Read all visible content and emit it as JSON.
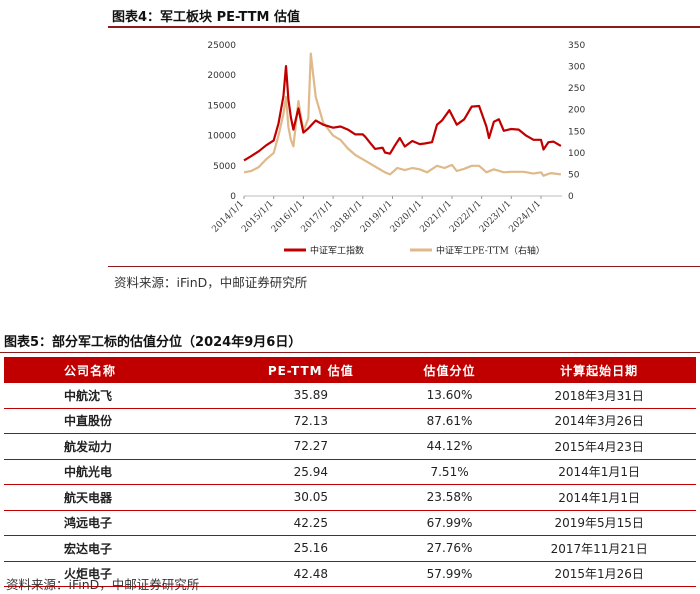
{
  "figure": {
    "title": "图表4：军工板块 PE-TTM 估值",
    "source": "资料来源：iFinD，中邮证券研究所"
  },
  "chart_data": {
    "type": "line",
    "x_ticks": [
      "2014/1/1",
      "2015/1/1",
      "2016/1/1",
      "2017/1/1",
      "2018/1/1",
      "2019/1/1",
      "2020/1/1",
      "2021/1/1",
      "2022/1/1",
      "2023/1/1",
      "2024/1/1"
    ],
    "y_left": {
      "ylim": [
        0,
        25000
      ],
      "ticks": [
        0,
        5000,
        10000,
        15000,
        20000,
        25000
      ]
    },
    "y_right": {
      "ylim": [
        0,
        350
      ],
      "ticks": [
        0,
        50,
        100,
        150,
        200,
        250,
        300,
        350
      ]
    },
    "series": [
      {
        "name": "中证军工指数",
        "axis": "left",
        "color": "#c00000",
        "points": [
          [
            "2014/1/1",
            5900
          ],
          [
            "2014/4/1",
            6600
          ],
          [
            "2014/7/1",
            7400
          ],
          [
            "2014/10/1",
            8400
          ],
          [
            "2015/1/1",
            9200
          ],
          [
            "2015/3/1",
            12000
          ],
          [
            "2015/5/1",
            16500
          ],
          [
            "2015/6/1",
            21500
          ],
          [
            "2015/7/1",
            16000
          ],
          [
            "2015/8/1",
            13000
          ],
          [
            "2015/9/1",
            11000
          ],
          [
            "2015/11/1",
            14500
          ],
          [
            "2016/1/1",
            10500
          ],
          [
            "2016/3/1",
            11200
          ],
          [
            "2016/6/1",
            12500
          ],
          [
            "2016/9/1",
            11800
          ],
          [
            "2017/1/1",
            11300
          ],
          [
            "2017/4/1",
            11500
          ],
          [
            "2017/7/1",
            11000
          ],
          [
            "2017/10/1",
            10200
          ],
          [
            "2018/1/1",
            10200
          ],
          [
            "2018/2/1",
            9800
          ],
          [
            "2018/4/1",
            8800
          ],
          [
            "2018/6/1",
            7800
          ],
          [
            "2018/9/1",
            8000
          ],
          [
            "2018/10/1",
            7200
          ],
          [
            "2018/12/1",
            7000
          ],
          [
            "2019/2/1",
            8400
          ],
          [
            "2019/4/1",
            9600
          ],
          [
            "2019/6/1",
            8200
          ],
          [
            "2019/9/1",
            9100
          ],
          [
            "2019/12/1",
            8600
          ],
          [
            "2020/2/1",
            8700
          ],
          [
            "2020/5/1",
            8900
          ],
          [
            "2020/7/1",
            11800
          ],
          [
            "2020/9/1",
            12500
          ],
          [
            "2020/12/1",
            14200
          ],
          [
            "2021/3/1",
            11800
          ],
          [
            "2021/6/1",
            12700
          ],
          [
            "2021/9/1",
            14800
          ],
          [
            "2021/12/1",
            14900
          ],
          [
            "2022/3/1",
            11500
          ],
          [
            "2022/4/1",
            9600
          ],
          [
            "2022/6/1",
            12300
          ],
          [
            "2022/8/1",
            12700
          ],
          [
            "2022/10/1",
            10800
          ],
          [
            "2023/1/1",
            11100
          ],
          [
            "2023/4/1",
            11000
          ],
          [
            "2023/7/1",
            10000
          ],
          [
            "2023/10/1",
            9300
          ],
          [
            "2024/1/1",
            9300
          ],
          [
            "2024/2/1",
            7700
          ],
          [
            "2024/4/1",
            8900
          ],
          [
            "2024/6/1",
            9000
          ],
          [
            "2024/9/1",
            8300
          ]
        ]
      },
      {
        "name": "中证军工PE-TTM（右轴）",
        "axis": "right",
        "color": "#e0b98a",
        "points": [
          [
            "2014/1/1",
            55
          ],
          [
            "2014/4/1",
            58
          ],
          [
            "2014/7/1",
            67
          ],
          [
            "2014/10/1",
            85
          ],
          [
            "2015/1/1",
            100
          ],
          [
            "2015/3/1",
            140
          ],
          [
            "2015/5/1",
            190
          ],
          [
            "2015/6/1",
            230
          ],
          [
            "2015/7/1",
            160
          ],
          [
            "2015/8/1",
            130
          ],
          [
            "2015/9/1",
            115
          ],
          [
            "2015/11/1",
            220
          ],
          [
            "2016/1/1",
            150
          ],
          [
            "2016/3/1",
            180
          ],
          [
            "2016/4/1",
            330
          ],
          [
            "2016/6/1",
            230
          ],
          [
            "2016/9/1",
            170
          ],
          [
            "2017/1/1",
            140
          ],
          [
            "2017/4/1",
            130
          ],
          [
            "2017/7/1",
            110
          ],
          [
            "2017/10/1",
            95
          ],
          [
            "2018/1/1",
            85
          ],
          [
            "2018/4/1",
            75
          ],
          [
            "2018/7/1",
            65
          ],
          [
            "2018/10/1",
            55
          ],
          [
            "2018/12/1",
            50
          ],
          [
            "2019/3/1",
            65
          ],
          [
            "2019/6/1",
            60
          ],
          [
            "2019/9/1",
            65
          ],
          [
            "2019/12/1",
            62
          ],
          [
            "2020/3/1",
            55
          ],
          [
            "2020/7/1",
            70
          ],
          [
            "2020/10/1",
            65
          ],
          [
            "2021/1/1",
            72
          ],
          [
            "2021/3/1",
            58
          ],
          [
            "2021/6/1",
            63
          ],
          [
            "2021/9/1",
            70
          ],
          [
            "2021/12/1",
            70
          ],
          [
            "2022/3/1",
            55
          ],
          [
            "2022/6/1",
            62
          ],
          [
            "2022/10/1",
            55
          ],
          [
            "2023/1/1",
            56
          ],
          [
            "2023/6/1",
            56
          ],
          [
            "2023/10/1",
            52
          ],
          [
            "2024/1/1",
            55
          ],
          [
            "2024/2/1",
            47
          ],
          [
            "2024/5/1",
            53
          ],
          [
            "2024/9/1",
            50
          ]
        ]
      }
    ]
  },
  "table": {
    "title": "图表5：部分军工标的估值分位（2024年9月6日）",
    "headers": [
      "公司名称",
      "PE-TTM 估值",
      "估值分位",
      "计算起始日期"
    ],
    "rows": [
      [
        "中航沈飞",
        "35.89",
        "13.60%",
        "2018年3月31日"
      ],
      [
        "中直股份",
        "72.13",
        "87.61%",
        "2014年3月26日"
      ],
      [
        "航发动力",
        "72.27",
        "44.12%",
        "2015年4月23日"
      ],
      [
        "中航光电",
        "25.94",
        "7.51%",
        "2014年1月1日"
      ],
      [
        "航天电器",
        "30.05",
        "23.58%",
        "2014年1月1日"
      ],
      [
        "鸿远电子",
        "42.25",
        "67.99%",
        "2019年5月15日"
      ],
      [
        "宏达电子",
        "25.16",
        "27.76%",
        "2017年11月21日"
      ],
      [
        "火炬电子",
        "42.48",
        "57.99%",
        "2015年1月26日"
      ]
    ],
    "source": "资料来源：iFinD，中邮证券研究所"
  },
  "colors": {
    "accent": "#c00000",
    "rule": "#8b1a1a",
    "pe_line": "#e0b98a"
  }
}
